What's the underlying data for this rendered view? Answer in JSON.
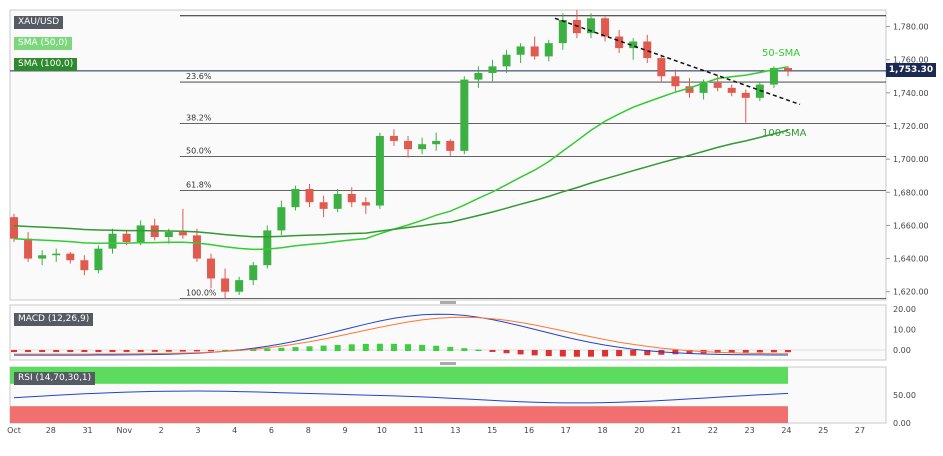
{
  "chart_data": [
    {
      "type": "candlestick",
      "symbol": "XAU/USD",
      "indicators": [
        {
          "name": "SMA (50,0)",
          "color": "#33cc33",
          "annotation": "50-SMA"
        },
        {
          "name": "SMA (100,0)",
          "color": "#339933",
          "annotation": "100-SMA"
        }
      ],
      "last_price": "1,753.30",
      "ylim": [
        1615,
        1790
      ],
      "y_ticks": [
        "1,620.00",
        "1,640.00",
        "1,660.00",
        "1,680.00",
        "1,700.00",
        "1,720.00",
        "1,740.00",
        "1,760.00",
        "1,780.00"
      ],
      "x_ticks": [
        "Oct",
        "28",
        "31",
        "Nov",
        "2",
        "3",
        "4",
        "6",
        "8",
        "9",
        "10",
        "11",
        "13",
        "15",
        "16",
        "17",
        "18",
        "20",
        "21",
        "22",
        "23",
        "24",
        "25",
        "27"
      ],
      "fibonacci": [
        {
          "label": "100.0%",
          "value": 1616.0
        },
        {
          "label": "61.8%",
          "value": 1681.0
        },
        {
          "label": "50.0%",
          "value": 1701.5
        },
        {
          "label": "38.2%",
          "value": 1721.5
        },
        {
          "label": "23.6%",
          "value": 1746.5
        }
      ],
      "top_level": 1786.5,
      "trendline": {
        "from": [
          555,
          1785
        ],
        "to": [
          800,
          1733
        ]
      },
      "candles": [
        [
          1665,
          1667,
          1650,
          1652
        ],
        [
          1652,
          1656,
          1638,
          1640
        ],
        [
          1640,
          1645,
          1636,
          1642
        ],
        [
          1642,
          1646,
          1638,
          1643
        ],
        [
          1643,
          1644,
          1637,
          1639
        ],
        [
          1639,
          1642,
          1630,
          1633
        ],
        [
          1633,
          1648,
          1631,
          1646
        ],
        [
          1646,
          1658,
          1643,
          1655
        ],
        [
          1655,
          1657,
          1648,
          1650
        ],
        [
          1650,
          1663,
          1648,
          1660
        ],
        [
          1660,
          1664,
          1651,
          1653
        ],
        [
          1653,
          1658,
          1649,
          1656
        ],
        [
          1656,
          1670,
          1652,
          1654
        ],
        [
          1654,
          1658,
          1638,
          1640
        ],
        [
          1640,
          1643,
          1622,
          1628
        ],
        [
          1628,
          1634,
          1616,
          1620
        ],
        [
          1620,
          1629,
          1618,
          1627
        ],
        [
          1627,
          1638,
          1624,
          1636
        ],
        [
          1636,
          1660,
          1634,
          1657
        ],
        [
          1657,
          1675,
          1654,
          1671
        ],
        [
          1671,
          1684,
          1669,
          1682
        ],
        [
          1682,
          1685,
          1671,
          1674
        ],
        [
          1674,
          1678,
          1665,
          1670
        ],
        [
          1670,
          1682,
          1668,
          1679
        ],
        [
          1679,
          1683,
          1671,
          1674
        ],
        [
          1674,
          1677,
          1667,
          1672
        ],
        [
          1672,
          1716,
          1670,
          1714
        ],
        [
          1714,
          1718,
          1708,
          1711
        ],
        [
          1711,
          1714,
          1701,
          1706
        ],
        [
          1706,
          1713,
          1703,
          1709
        ],
        [
          1709,
          1716,
          1705,
          1711
        ],
        [
          1711,
          1712,
          1702,
          1705
        ],
        [
          1705,
          1750,
          1703,
          1748
        ],
        [
          1748,
          1756,
          1743,
          1752
        ],
        [
          1752,
          1760,
          1747,
          1756
        ],
        [
          1756,
          1766,
          1752,
          1763
        ],
        [
          1763,
          1770,
          1758,
          1768
        ],
        [
          1768,
          1774,
          1760,
          1762
        ],
        [
          1762,
          1772,
          1759,
          1770
        ],
        [
          1770,
          1788,
          1766,
          1784
        ],
        [
          1784,
          1790,
          1773,
          1776
        ],
        [
          1776,
          1788,
          1773,
          1785
        ],
        [
          1785,
          1786,
          1771,
          1774
        ],
        [
          1774,
          1778,
          1764,
          1767
        ],
        [
          1767,
          1773,
          1760,
          1771
        ],
        [
          1771,
          1775,
          1758,
          1761
        ],
        [
          1761,
          1763,
          1747,
          1750
        ],
        [
          1750,
          1754,
          1741,
          1744
        ],
        [
          1744,
          1749,
          1737,
          1740
        ],
        [
          1740,
          1748,
          1736,
          1746
        ],
        [
          1746,
          1751,
          1741,
          1743
        ],
        [
          1743,
          1745,
          1738,
          1740
        ],
        [
          1740,
          1742,
          1722,
          1737
        ],
        [
          1737,
          1747,
          1735,
          1745
        ],
        [
          1745,
          1756,
          1743,
          1755
        ],
        [
          1755,
          1756,
          1750,
          1753.3
        ]
      ]
    },
    {
      "type": "line",
      "indicator": "MACD (12,26,9)",
      "y_ticks": [
        "20.00",
        "10.00",
        "0.00"
      ]
    },
    {
      "type": "line",
      "indicator": "RSI (14,70,30,1)",
      "y_ticks": [
        "50.00",
        "0.00"
      ],
      "overbought": 70,
      "oversold": 30
    }
  ]
}
